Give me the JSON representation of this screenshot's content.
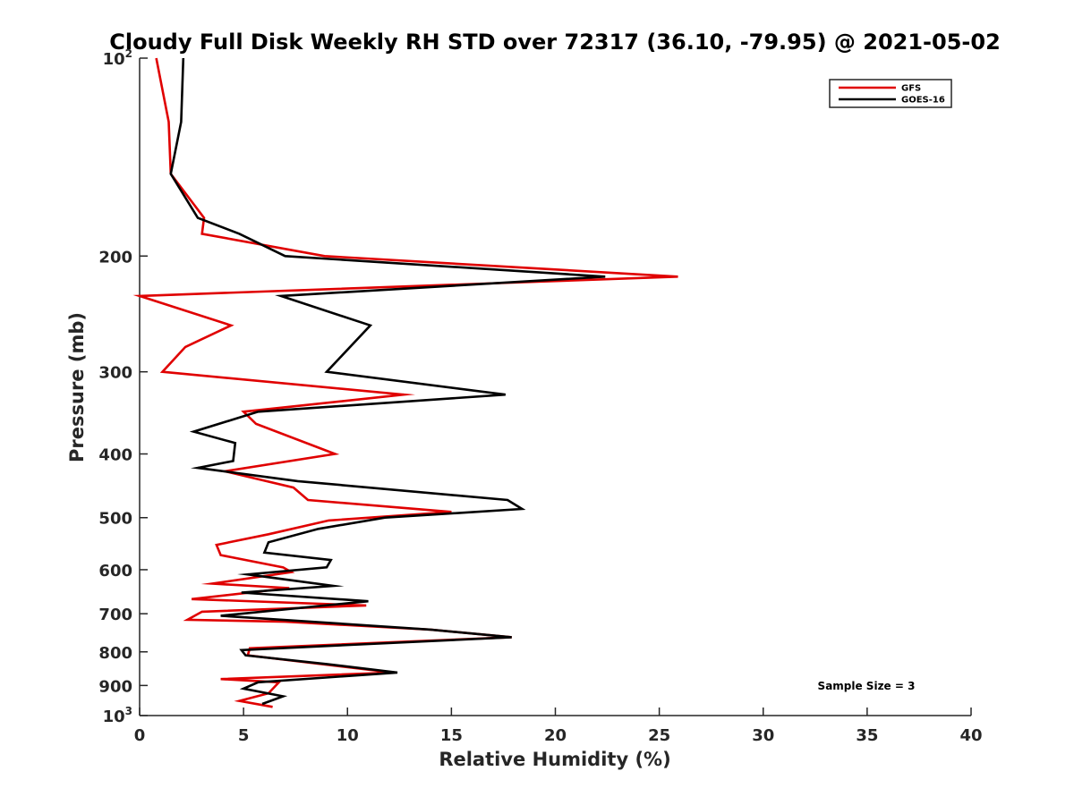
{
  "chart_data": {
    "type": "line",
    "title": "Cloudy Full Disk Weekly RH STD over 72317 (36.10, -79.95) @ 2021-05-02",
    "xlabel": "Relative Humidity (%)",
    "ylabel": "Pressure (mb)",
    "xlim": [
      0,
      40
    ],
    "ylim": [
      100,
      1000
    ],
    "y_scale": "log",
    "y_reversed": true,
    "grid": false,
    "legend_position": "top-right",
    "x_ticks": [
      0,
      5,
      10,
      15,
      20,
      25,
      30,
      35,
      40
    ],
    "x_tick_labels": [
      "0",
      "5",
      "10",
      "15",
      "20",
      "25",
      "30",
      "35",
      "40"
    ],
    "y_ticks": [
      100,
      200,
      300,
      400,
      500,
      600,
      700,
      800,
      900,
      1000
    ],
    "y_tick_labels": [
      {
        "base": "10",
        "exp": "2"
      },
      {
        "base": "200",
        "exp": ""
      },
      {
        "base": "300",
        "exp": ""
      },
      {
        "base": "400",
        "exp": ""
      },
      {
        "base": "500",
        "exp": ""
      },
      {
        "base": "600",
        "exp": ""
      },
      {
        "base": "700",
        "exp": ""
      },
      {
        "base": "800",
        "exp": ""
      },
      {
        "base": "900",
        "exp": ""
      },
      {
        "base": "10",
        "exp": "3"
      }
    ],
    "series": [
      {
        "name": "GFS",
        "color": "#e00000",
        "points": [
          [
            0.8,
            100
          ],
          [
            1.4,
            125
          ],
          [
            1.5,
            150
          ],
          [
            3.1,
            175
          ],
          [
            3.0,
            185
          ],
          [
            8.9,
            200
          ],
          [
            25.9,
            215
          ],
          [
            0.0,
            230
          ],
          [
            4.4,
            255
          ],
          [
            2.2,
            275
          ],
          [
            1.1,
            300
          ],
          [
            12.7,
            325
          ],
          [
            5.0,
            345
          ],
          [
            5.6,
            360
          ],
          [
            9.4,
            400
          ],
          [
            4.1,
            425
          ],
          [
            7.4,
            450
          ],
          [
            8.1,
            470
          ],
          [
            15.0,
            490
          ],
          [
            9.1,
            505
          ],
          [
            6.2,
            530
          ],
          [
            3.7,
            550
          ],
          [
            3.9,
            570
          ],
          [
            6.9,
            595
          ],
          [
            7.3,
            605
          ],
          [
            3.5,
            630
          ],
          [
            7.2,
            640
          ],
          [
            2.5,
            665
          ],
          [
            10.9,
            680
          ],
          [
            3.0,
            695
          ],
          [
            2.3,
            715
          ],
          [
            7.0,
            720
          ],
          [
            14.0,
            740
          ],
          [
            17.9,
            760
          ],
          [
            5.3,
            790
          ],
          [
            5.2,
            810
          ],
          [
            12.2,
            860
          ],
          [
            3.9,
            880
          ],
          [
            6.7,
            890
          ],
          [
            6.2,
            925
          ],
          [
            4.8,
            950
          ],
          [
            6.4,
            970
          ]
        ]
      },
      {
        "name": "GOES-16",
        "color": "#000000",
        "points": [
          [
            2.1,
            100
          ],
          [
            2.0,
            125
          ],
          [
            1.5,
            150
          ],
          [
            2.8,
            175
          ],
          [
            4.8,
            185
          ],
          [
            7.0,
            200
          ],
          [
            22.4,
            215
          ],
          [
            6.8,
            230
          ],
          [
            11.1,
            255
          ],
          [
            9.0,
            300
          ],
          [
            17.6,
            325
          ],
          [
            5.7,
            345
          ],
          [
            2.6,
            370
          ],
          [
            4.6,
            385
          ],
          [
            4.5,
            410
          ],
          [
            2.8,
            420
          ],
          [
            7.6,
            440
          ],
          [
            17.7,
            470
          ],
          [
            18.4,
            485
          ],
          [
            11.8,
            500
          ],
          [
            8.6,
            520
          ],
          [
            6.2,
            545
          ],
          [
            6.0,
            565
          ],
          [
            9.2,
            580
          ],
          [
            9.0,
            595
          ],
          [
            5.2,
            610
          ],
          [
            9.3,
            635
          ],
          [
            4.9,
            650
          ],
          [
            11.0,
            670
          ],
          [
            3.9,
            705
          ],
          [
            14.0,
            740
          ],
          [
            17.9,
            760
          ],
          [
            4.9,
            795
          ],
          [
            5.1,
            810
          ],
          [
            9.0,
            835
          ],
          [
            12.4,
            860
          ],
          [
            5.7,
            890
          ],
          [
            5.0,
            910
          ],
          [
            6.9,
            935
          ],
          [
            5.9,
            960
          ]
        ]
      }
    ],
    "annotation": "Sample Size = 3"
  }
}
